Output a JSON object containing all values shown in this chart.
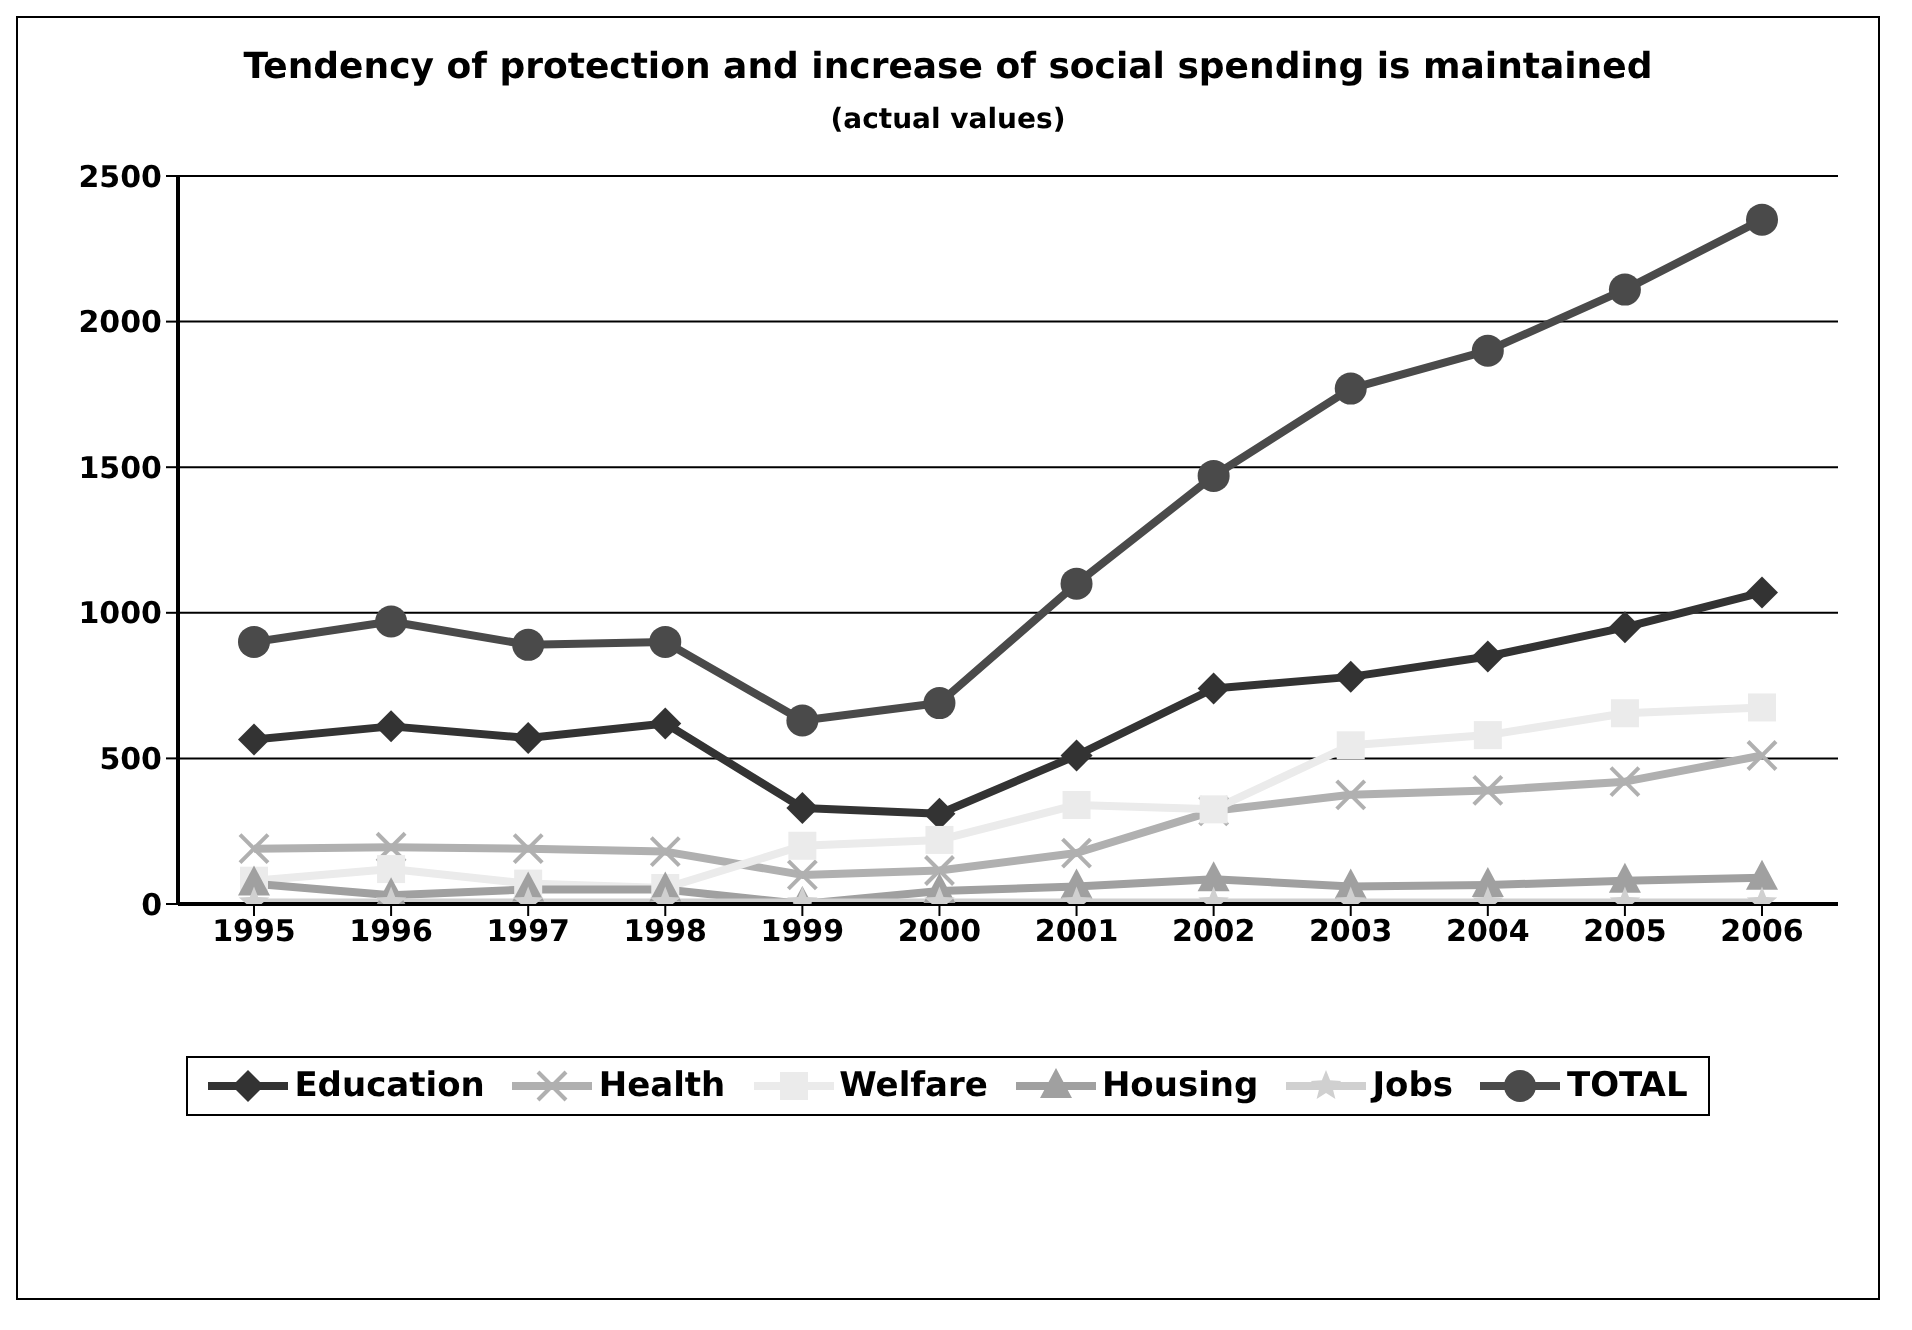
{
  "chart_data": {
    "type": "line",
    "title": "Tendency of protection and increase of social spending is maintained",
    "subtitle": "(actual values)",
    "categories": [
      "1995",
      "1996",
      "1997",
      "1998",
      "1999",
      "2000",
      "2001",
      "2002",
      "2003",
      "2004",
      "2005",
      "2006"
    ],
    "series": [
      {
        "name": "Education",
        "color": "#333333",
        "marker": "diamond",
        "values": [
          565,
          610,
          570,
          620,
          330,
          310,
          510,
          740,
          780,
          850,
          950,
          1070
        ]
      },
      {
        "name": "Health",
        "color": "#b0b0b0",
        "marker": "cross",
        "values": [
          190,
          195,
          190,
          180,
          100,
          115,
          175,
          320,
          375,
          390,
          420,
          510
        ]
      },
      {
        "name": "Welfare",
        "color": "#ebebeb",
        "marker": "square",
        "values": [
          80,
          120,
          70,
          55,
          200,
          220,
          340,
          325,
          545,
          580,
          655,
          675
        ]
      },
      {
        "name": "Housing",
        "color": "#a0a0a0",
        "marker": "triangle",
        "values": [
          70,
          30,
          50,
          50,
          0,
          45,
          60,
          85,
          60,
          65,
          80,
          90
        ]
      },
      {
        "name": "Jobs",
        "color": "#d0d0d0",
        "marker": "star",
        "values": [
          5,
          5,
          5,
          5,
          5,
          5,
          5,
          5,
          5,
          5,
          5,
          5
        ]
      },
      {
        "name": "TOTAL",
        "color": "#4a4a4a",
        "marker": "circle",
        "values": [
          900,
          970,
          890,
          900,
          630,
          690,
          1100,
          1470,
          1770,
          1900,
          2110,
          2350
        ]
      }
    ],
    "ylim": [
      0,
      2500
    ],
    "yticks": [
      0,
      500,
      1000,
      1500,
      2000,
      2500
    ],
    "grid": "y",
    "legend": "bottom"
  }
}
